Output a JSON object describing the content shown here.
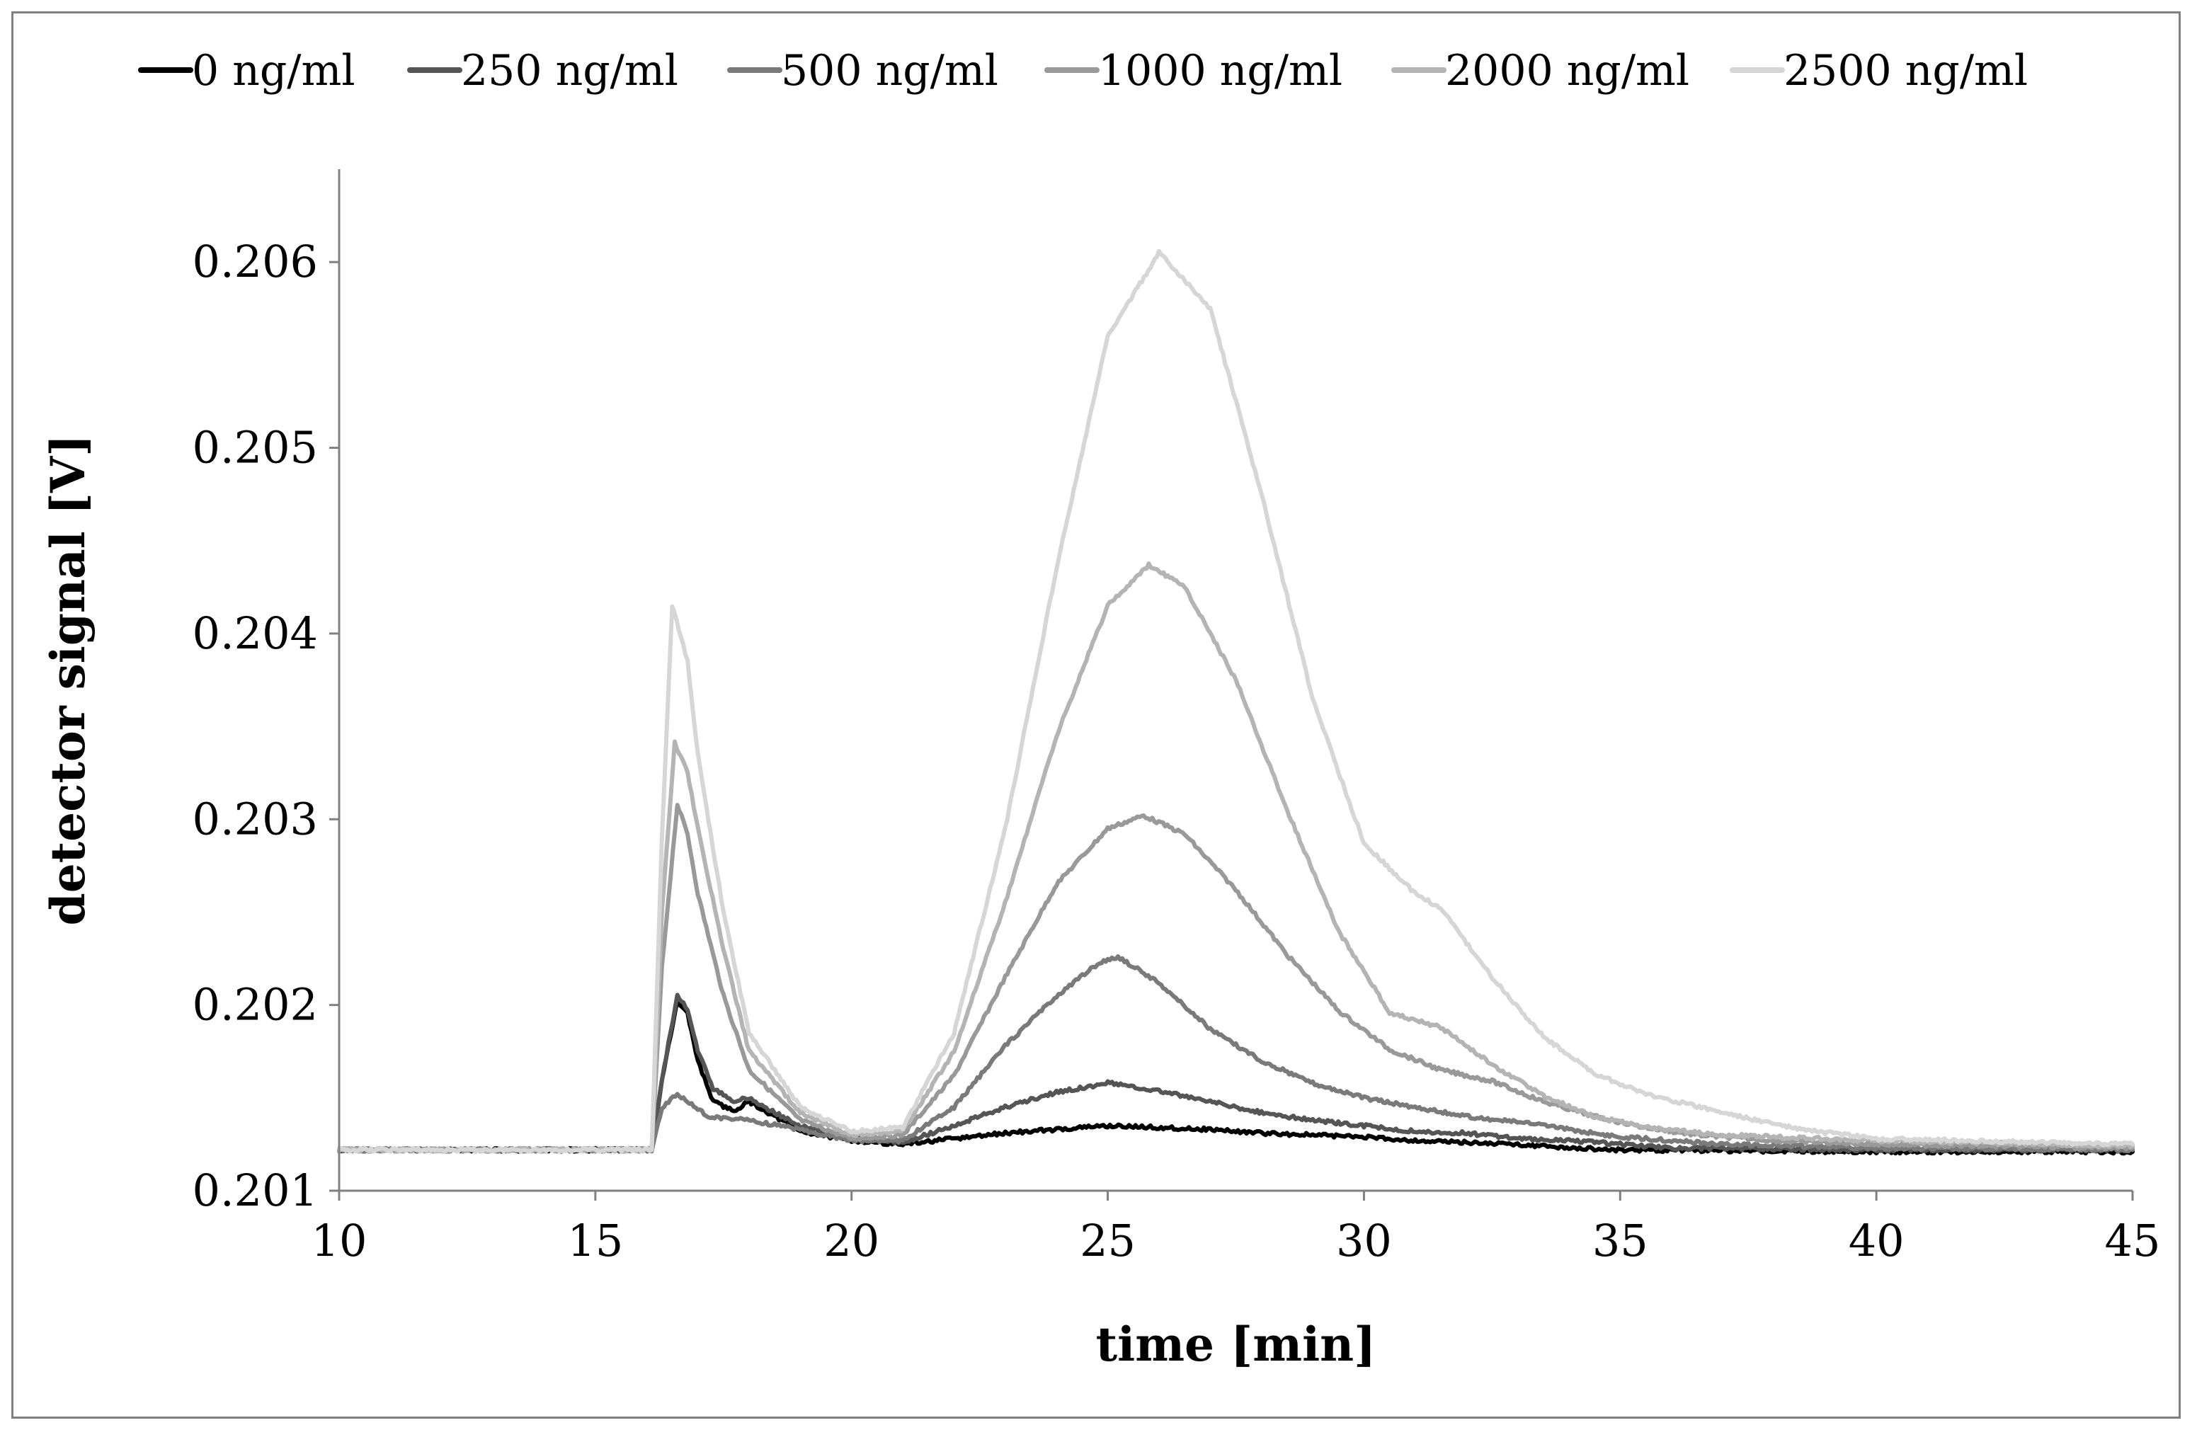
{
  "chart_data": {
    "type": "line",
    "title": "",
    "xlabel": "time [min]",
    "ylabel": "detector signal [V]",
    "xlim": [
      10,
      45
    ],
    "ylim": [
      0.201,
      0.2065
    ],
    "xticks": [
      10,
      15,
      20,
      25,
      30,
      35,
      40,
      45
    ],
    "xtick_labels": [
      "10",
      "15",
      "20",
      "25",
      "30",
      "35",
      "40",
      "45"
    ],
    "yticks": [
      0.201,
      0.202,
      0.203,
      0.204,
      0.205,
      0.206
    ],
    "ytick_labels": [
      "0.201",
      "0.202",
      "0.203",
      "0.204",
      "0.205",
      "0.206"
    ],
    "grid": false,
    "legend_position": "top",
    "series": [
      {
        "name": "0 ng/ml",
        "color": "#000000",
        "points": [
          [
            10,
            0.20122
          ],
          [
            15,
            0.20122
          ],
          [
            16.1,
            0.20122
          ],
          [
            16.3,
            0.2016
          ],
          [
            16.6,
            0.20202
          ],
          [
            16.8,
            0.20195
          ],
          [
            17.0,
            0.2017
          ],
          [
            17.3,
            0.20148
          ],
          [
            17.7,
            0.20143
          ],
          [
            18.0,
            0.20148
          ],
          [
            18.5,
            0.2014
          ],
          [
            19,
            0.20132
          ],
          [
            20,
            0.20127
          ],
          [
            21,
            0.20125
          ],
          [
            22,
            0.20128
          ],
          [
            23,
            0.20131
          ],
          [
            24,
            0.20133
          ],
          [
            25,
            0.20135
          ],
          [
            26,
            0.20134
          ],
          [
            27,
            0.20133
          ],
          [
            28,
            0.20131
          ],
          [
            29,
            0.2013
          ],
          [
            30,
            0.20129
          ],
          [
            31,
            0.20127
          ],
          [
            32,
            0.20126
          ],
          [
            33,
            0.20125
          ],
          [
            34,
            0.20123
          ],
          [
            35,
            0.20122
          ],
          [
            40,
            0.20121
          ],
          [
            45,
            0.20121
          ]
        ]
      },
      {
        "name": "250 ng/ml",
        "color": "#555555",
        "points": [
          [
            10,
            0.20122
          ],
          [
            15,
            0.20122
          ],
          [
            16.1,
            0.20122
          ],
          [
            16.3,
            0.2016
          ],
          [
            16.6,
            0.20205
          ],
          [
            16.8,
            0.20198
          ],
          [
            17.0,
            0.20175
          ],
          [
            17.3,
            0.20155
          ],
          [
            17.7,
            0.20148
          ],
          [
            18.0,
            0.2015
          ],
          [
            18.5,
            0.20142
          ],
          [
            19,
            0.20135
          ],
          [
            20,
            0.20128
          ],
          [
            21,
            0.20126
          ],
          [
            22,
            0.20135
          ],
          [
            23,
            0.20145
          ],
          [
            24,
            0.20153
          ],
          [
            25,
            0.20158
          ],
          [
            26,
            0.20154
          ],
          [
            27,
            0.20148
          ],
          [
            28,
            0.20142
          ],
          [
            29,
            0.20138
          ],
          [
            30,
            0.20135
          ],
          [
            31,
            0.20132
          ],
          [
            32,
            0.20131
          ],
          [
            33,
            0.20128
          ],
          [
            34,
            0.20127
          ],
          [
            35,
            0.20125
          ],
          [
            36,
            0.20123
          ],
          [
            40,
            0.20122
          ],
          [
            45,
            0.20122
          ]
        ]
      },
      {
        "name": "500 ng/ml",
        "color": "#7a7a7a",
        "points": [
          [
            10,
            0.20122
          ],
          [
            15,
            0.20122
          ],
          [
            16.1,
            0.20122
          ],
          [
            16.3,
            0.20145
          ],
          [
            16.6,
            0.20152
          ],
          [
            16.8,
            0.20148
          ],
          [
            17.2,
            0.2014
          ],
          [
            18,
            0.20138
          ],
          [
            19,
            0.20133
          ],
          [
            20,
            0.20127
          ],
          [
            21,
            0.20127
          ],
          [
            22,
            0.20145
          ],
          [
            23,
            0.20178
          ],
          [
            24,
            0.20205
          ],
          [
            24.8,
            0.20222
          ],
          [
            25.2,
            0.20226
          ],
          [
            26,
            0.20212
          ],
          [
            27,
            0.20187
          ],
          [
            28,
            0.2017
          ],
          [
            29,
            0.20158
          ],
          [
            30,
            0.2015
          ],
          [
            31,
            0.20145
          ],
          [
            32,
            0.2014
          ],
          [
            33,
            0.20137
          ],
          [
            34,
            0.20133
          ],
          [
            35,
            0.20129
          ],
          [
            36,
            0.20127
          ],
          [
            37,
            0.20125
          ],
          [
            40,
            0.20123
          ],
          [
            45,
            0.20122
          ]
        ]
      },
      {
        "name": "1000 ng/ml",
        "color": "#999999",
        "points": [
          [
            10,
            0.20122
          ],
          [
            15,
            0.20122
          ],
          [
            16.1,
            0.20122
          ],
          [
            16.3,
            0.2022
          ],
          [
            16.6,
            0.20308
          ],
          [
            16.8,
            0.20292
          ],
          [
            17.0,
            0.2026
          ],
          [
            17.5,
            0.20205
          ],
          [
            18,
            0.20165
          ],
          [
            19,
            0.20138
          ],
          [
            20,
            0.20128
          ],
          [
            21,
            0.2013
          ],
          [
            22,
            0.20162
          ],
          [
            23,
            0.20215
          ],
          [
            24,
            0.20265
          ],
          [
            25,
            0.20295
          ],
          [
            25.7,
            0.20302
          ],
          [
            26.5,
            0.20292
          ],
          [
            27.5,
            0.20262
          ],
          [
            28.5,
            0.20227
          ],
          [
            29.5,
            0.20197
          ],
          [
            30.5,
            0.20176
          ],
          [
            31.5,
            0.20165
          ],
          [
            32.5,
            0.20159
          ],
          [
            33.5,
            0.20148
          ],
          [
            34.5,
            0.2014
          ],
          [
            35.5,
            0.20134
          ],
          [
            36.5,
            0.2013
          ],
          [
            38,
            0.20127
          ],
          [
            40,
            0.20125
          ],
          [
            45,
            0.20123
          ]
        ]
      },
      {
        "name": "2000 ng/ml",
        "color": "#b4b4b4",
        "points": [
          [
            10,
            0.20122
          ],
          [
            15,
            0.20122
          ],
          [
            16.1,
            0.20122
          ],
          [
            16.3,
            0.2025
          ],
          [
            16.55,
            0.20341
          ],
          [
            16.8,
            0.20325
          ],
          [
            17.0,
            0.20295
          ],
          [
            17.5,
            0.2023
          ],
          [
            18,
            0.20175
          ],
          [
            19,
            0.20142
          ],
          [
            20,
            0.2013
          ],
          [
            21,
            0.20132
          ],
          [
            22,
            0.20175
          ],
          [
            23,
            0.20255
          ],
          [
            24,
            0.20345
          ],
          [
            25,
            0.20415
          ],
          [
            25.8,
            0.20437
          ],
          [
            26.5,
            0.20425
          ],
          [
            27.5,
            0.20375
          ],
          [
            28.5,
            0.20305
          ],
          [
            29.5,
            0.2024
          ],
          [
            30.5,
            0.20196
          ],
          [
            31.5,
            0.20188
          ],
          [
            32.5,
            0.20168
          ],
          [
            33.5,
            0.20151
          ],
          [
            34.5,
            0.2014
          ],
          [
            35.5,
            0.20134
          ],
          [
            37,
            0.2013
          ],
          [
            40,
            0.20127
          ],
          [
            45,
            0.20124
          ]
        ]
      },
      {
        "name": "2500 ng/ml",
        "color": "#d6d6d6",
        "points": [
          [
            10,
            0.20122
          ],
          [
            15,
            0.20122
          ],
          [
            16.1,
            0.20122
          ],
          [
            16.3,
            0.2029
          ],
          [
            16.5,
            0.20415
          ],
          [
            16.8,
            0.20385
          ],
          [
            17.0,
            0.20335
          ],
          [
            17.5,
            0.2025
          ],
          [
            18,
            0.20185
          ],
          [
            19,
            0.20145
          ],
          [
            20,
            0.20132
          ],
          [
            21,
            0.20134
          ],
          [
            22,
            0.20185
          ],
          [
            23,
            0.20295
          ],
          [
            24,
            0.20435
          ],
          [
            25,
            0.2056
          ],
          [
            26,
            0.20605
          ],
          [
            27,
            0.20575
          ],
          [
            28,
            0.20475
          ],
          [
            29,
            0.20365
          ],
          [
            30,
            0.20287
          ],
          [
            31,
            0.2026
          ],
          [
            31.5,
            0.20252
          ],
          [
            32.5,
            0.20215
          ],
          [
            33.5,
            0.20183
          ],
          [
            34.5,
            0.20163
          ],
          [
            35.5,
            0.20152
          ],
          [
            37,
            0.20142
          ],
          [
            38.5,
            0.20133
          ],
          [
            40,
            0.20128
          ],
          [
            45,
            0.20125
          ]
        ]
      }
    ]
  }
}
